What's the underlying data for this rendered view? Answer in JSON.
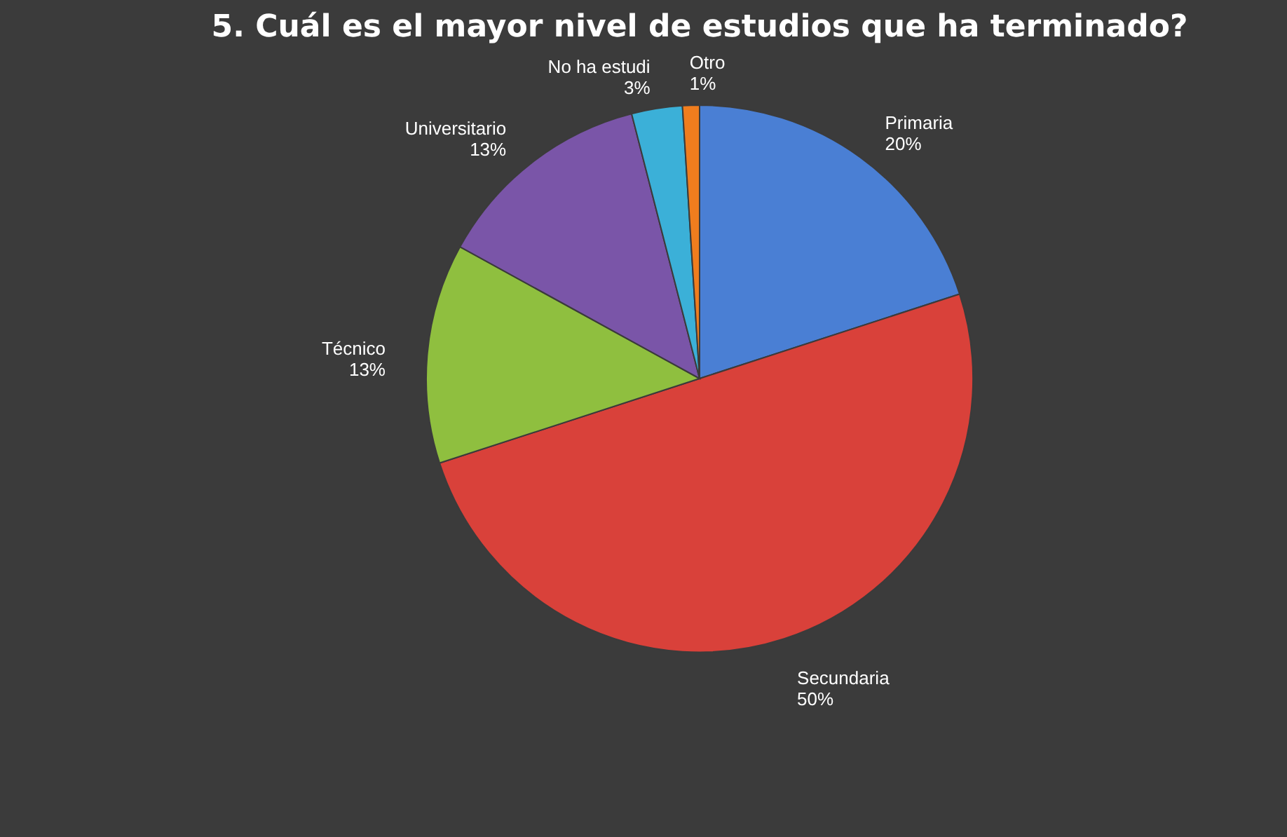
{
  "chart_data": {
    "type": "pie",
    "title": "5. Cuál es el mayor nivel de estudios que ha terminado?",
    "categories": [
      "Primaria",
      "Secundaria",
      "Técnico",
      "Universitario",
      "No ha estudi",
      "Otro"
    ],
    "values": [
      20,
      50,
      13,
      13,
      3,
      1
    ],
    "value_labels": [
      "20%",
      "50%",
      "13%",
      "13%",
      "3%",
      "1%"
    ],
    "colors": [
      "#4a7fd4",
      "#d9413a",
      "#8fbf3f",
      "#7a55a8",
      "#3bb0d8",
      "#f07d1e"
    ],
    "legend": false
  }
}
